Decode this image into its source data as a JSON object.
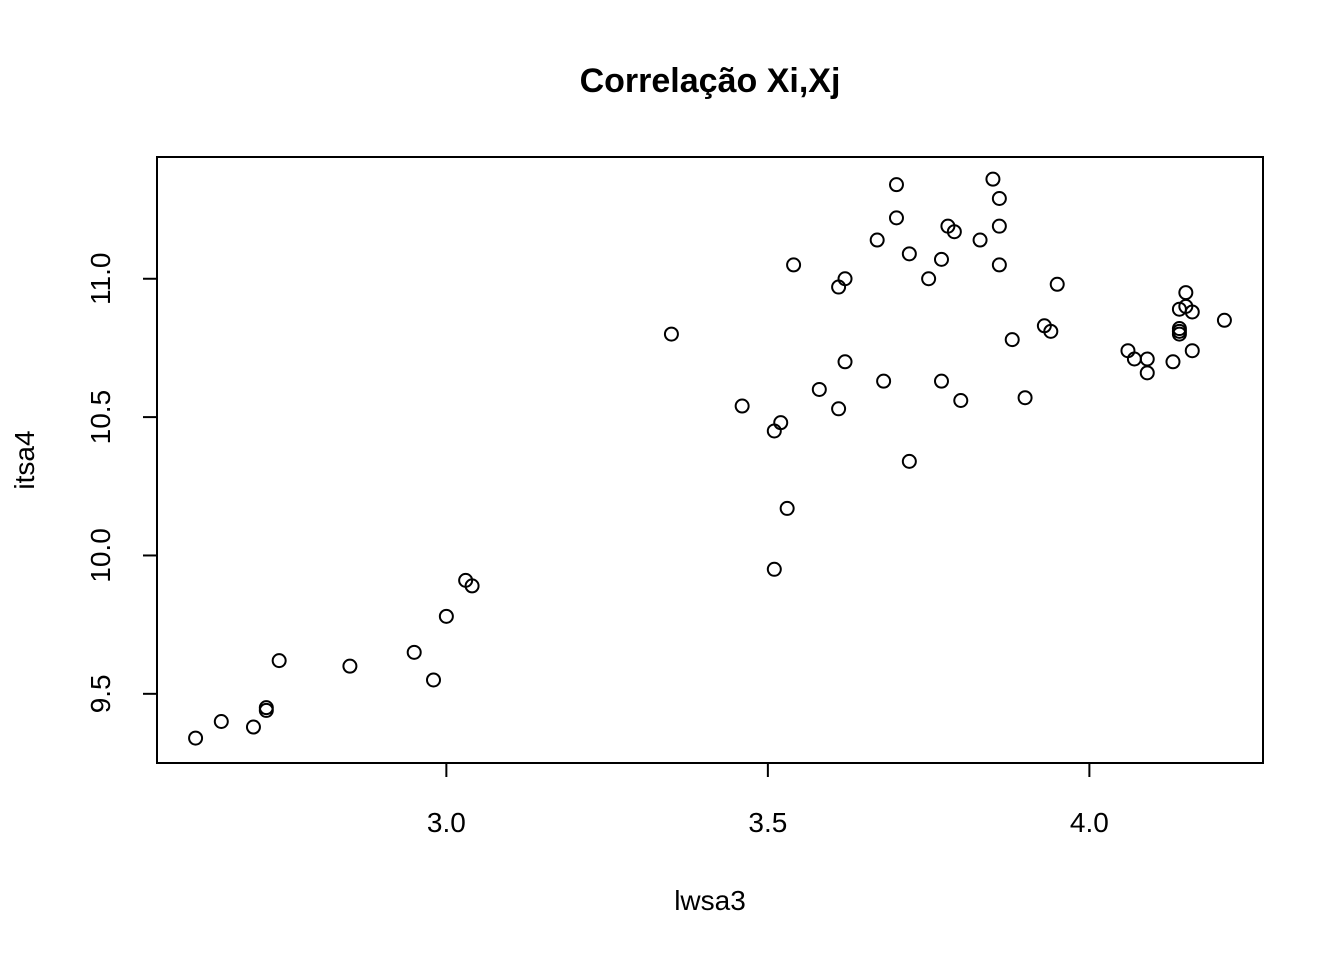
{
  "chart_data": {
    "type": "scatter",
    "title": "Correlação Xi,Xj",
    "xlabel": "lwsa3",
    "ylabel": "itsa4",
    "xlim": [
      2.55,
      4.27
    ],
    "ylim": [
      9.25,
      11.44
    ],
    "x_ticks": [
      3.0,
      3.5,
      4.0
    ],
    "x_tick_labels": [
      "3.0",
      "3.5",
      "4.0"
    ],
    "y_ticks": [
      9.5,
      10.0,
      10.5,
      11.0
    ],
    "y_tick_labels": [
      "9.5",
      "10.0",
      "10.5",
      "11.0"
    ],
    "grid": false,
    "marker": "open-circle",
    "points": [
      {
        "x": 2.61,
        "y": 9.34
      },
      {
        "x": 2.65,
        "y": 9.4
      },
      {
        "x": 2.7,
        "y": 9.38
      },
      {
        "x": 2.72,
        "y": 9.44
      },
      {
        "x": 2.72,
        "y": 9.45
      },
      {
        "x": 2.74,
        "y": 9.62
      },
      {
        "x": 2.85,
        "y": 9.6
      },
      {
        "x": 2.95,
        "y": 9.65
      },
      {
        "x": 2.98,
        "y": 9.55
      },
      {
        "x": 3.0,
        "y": 9.78
      },
      {
        "x": 3.03,
        "y": 9.91
      },
      {
        "x": 3.04,
        "y": 9.89
      },
      {
        "x": 3.35,
        "y": 10.8
      },
      {
        "x": 3.46,
        "y": 10.54
      },
      {
        "x": 3.51,
        "y": 10.45
      },
      {
        "x": 3.52,
        "y": 10.48
      },
      {
        "x": 3.51,
        "y": 9.95
      },
      {
        "x": 3.53,
        "y": 10.17
      },
      {
        "x": 3.54,
        "y": 11.05
      },
      {
        "x": 3.58,
        "y": 10.6
      },
      {
        "x": 3.61,
        "y": 10.53
      },
      {
        "x": 3.61,
        "y": 10.97
      },
      {
        "x": 3.62,
        "y": 11.0
      },
      {
        "x": 3.62,
        "y": 10.7
      },
      {
        "x": 3.67,
        "y": 11.14
      },
      {
        "x": 3.68,
        "y": 10.63
      },
      {
        "x": 3.7,
        "y": 11.34
      },
      {
        "x": 3.7,
        "y": 11.22
      },
      {
        "x": 3.72,
        "y": 11.09
      },
      {
        "x": 3.72,
        "y": 10.34
      },
      {
        "x": 3.75,
        "y": 11.0
      },
      {
        "x": 3.77,
        "y": 11.07
      },
      {
        "x": 3.77,
        "y": 10.63
      },
      {
        "x": 3.78,
        "y": 11.19
      },
      {
        "x": 3.79,
        "y": 11.17
      },
      {
        "x": 3.8,
        "y": 10.56
      },
      {
        "x": 3.83,
        "y": 11.14
      },
      {
        "x": 3.85,
        "y": 11.36
      },
      {
        "x": 3.86,
        "y": 11.29
      },
      {
        "x": 3.86,
        "y": 11.19
      },
      {
        "x": 3.86,
        "y": 11.05
      },
      {
        "x": 3.88,
        "y": 10.78
      },
      {
        "x": 3.9,
        "y": 10.57
      },
      {
        "x": 3.93,
        "y": 10.83
      },
      {
        "x": 3.94,
        "y": 10.81
      },
      {
        "x": 3.95,
        "y": 10.98
      },
      {
        "x": 4.06,
        "y": 10.74
      },
      {
        "x": 4.07,
        "y": 10.71
      },
      {
        "x": 4.09,
        "y": 10.71
      },
      {
        "x": 4.09,
        "y": 10.66
      },
      {
        "x": 4.13,
        "y": 10.7
      },
      {
        "x": 4.14,
        "y": 10.8
      },
      {
        "x": 4.14,
        "y": 10.81
      },
      {
        "x": 4.14,
        "y": 10.82
      },
      {
        "x": 4.14,
        "y": 10.89
      },
      {
        "x": 4.15,
        "y": 10.95
      },
      {
        "x": 4.15,
        "y": 10.9
      },
      {
        "x": 4.16,
        "y": 10.88
      },
      {
        "x": 4.16,
        "y": 10.74
      },
      {
        "x": 4.21,
        "y": 10.85
      }
    ]
  }
}
